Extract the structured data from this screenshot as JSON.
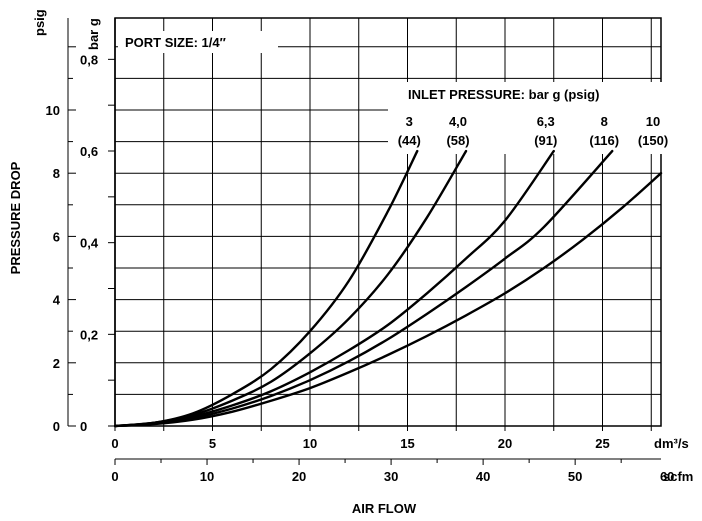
{
  "chart_data": {
    "type": "line",
    "port_size_label": "PORT SIZE: 1/4″",
    "ylabel": "PRESSURE DROP",
    "xlabel": "AIR FLOW",
    "y_units": {
      "psig": "psig",
      "bar": "bar g"
    },
    "x_units": {
      "metric": "dm³/s",
      "imperial": "scfm"
    },
    "legend_title": "INLET PRESSURE: bar g (psig)",
    "xlim": [
      0,
      28
    ],
    "ylim_psig": [
      0,
      13
    ],
    "ylim_bar": [
      0,
      0.9
    ],
    "x_ticks_metric": [
      {
        "v": 0,
        "label": "0"
      },
      {
        "v": 5,
        "label": "5"
      },
      {
        "v": 10,
        "label": "10"
      },
      {
        "v": 15,
        "label": "15"
      },
      {
        "v": 20,
        "label": "20"
      },
      {
        "v": 25,
        "label": "25"
      }
    ],
    "x_ticks_imperial": [
      {
        "v": 0,
        "label": "0"
      },
      {
        "v": 10,
        "label": "10"
      },
      {
        "v": 20,
        "label": "20"
      },
      {
        "v": 30,
        "label": "30"
      },
      {
        "v": 40,
        "label": "40"
      },
      {
        "v": 50,
        "label": "50"
      },
      {
        "v": 60,
        "label": "60"
      }
    ],
    "y_ticks_psig": [
      {
        "v": 0,
        "label": "0"
      },
      {
        "v": 2,
        "label": "2"
      },
      {
        "v": 4,
        "label": "4"
      },
      {
        "v": 6,
        "label": "6"
      },
      {
        "v": 8,
        "label": "8"
      },
      {
        "v": 10,
        "label": "10"
      }
    ],
    "y_ticks_bar": [
      {
        "v": 0,
        "label": "0"
      },
      {
        "v": 0.2,
        "label": "0,2"
      },
      {
        "v": 0.4,
        "label": "0,4"
      },
      {
        "v": 0.6,
        "label": "0,6"
      },
      {
        "v": 0.8,
        "label": "0,8"
      }
    ],
    "series": [
      {
        "name": "3",
        "name2": "(44)",
        "x": [
          0,
          2,
          4,
          6,
          8,
          10,
          12,
          14,
          15.5
        ],
        "y": [
          0,
          0.1,
          0.4,
          1.0,
          1.8,
          3.0,
          4.6,
          6.8,
          8.7
        ]
      },
      {
        "name": "4,0",
        "name2": "(58)",
        "x": [
          0,
          2,
          4,
          6,
          8,
          10,
          12,
          14,
          16,
          18
        ],
        "y": [
          0,
          0.1,
          0.35,
          0.8,
          1.4,
          2.3,
          3.4,
          4.8,
          6.6,
          8.7
        ]
      },
      {
        "name": "6,3",
        "name2": "(91)",
        "x": [
          0,
          2,
          4,
          6,
          8,
          10,
          12,
          14,
          16,
          18,
          20,
          22.5
        ],
        "y": [
          0,
          0.1,
          0.3,
          0.65,
          1.1,
          1.7,
          2.4,
          3.2,
          4.2,
          5.3,
          6.5,
          8.7
        ]
      },
      {
        "name": "8",
        "name2": "(116)",
        "x": [
          0,
          2,
          4,
          6,
          8,
          10,
          12,
          14,
          16,
          18,
          20,
          22,
          25.5
        ],
        "y": [
          0,
          0.08,
          0.25,
          0.55,
          0.95,
          1.45,
          2.05,
          2.75,
          3.55,
          4.4,
          5.3,
          6.3,
          8.7
        ]
      },
      {
        "name": "10",
        "name2": "(150)",
        "x": [
          0,
          2,
          4,
          6,
          8,
          10,
          12,
          14,
          16,
          18,
          20,
          22,
          24,
          26,
          28
        ],
        "y": [
          0,
          0.06,
          0.2,
          0.45,
          0.8,
          1.2,
          1.7,
          2.25,
          2.85,
          3.5,
          4.2,
          5.0,
          5.9,
          6.9,
          8.0
        ]
      }
    ],
    "grid": true
  }
}
